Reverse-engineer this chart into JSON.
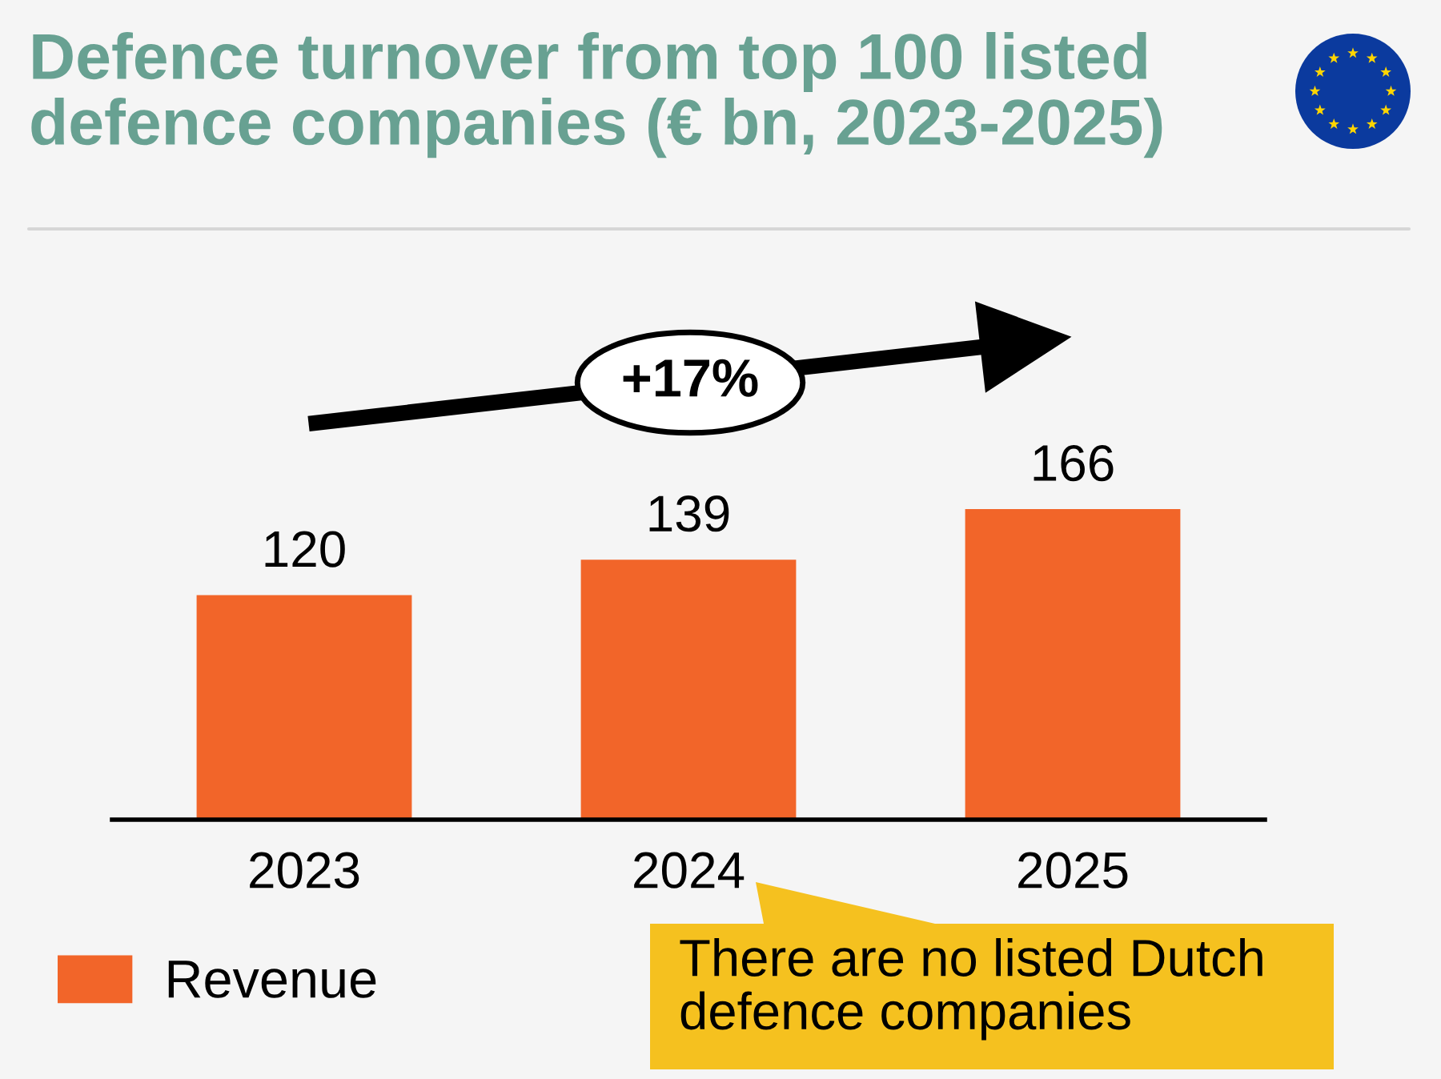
{
  "chart_data": {
    "type": "bar",
    "title": "Defence turnover from top 100 listed defence companies (€ bn, 2023-2025)",
    "categories": [
      "2023",
      "2024",
      "2025"
    ],
    "series": [
      {
        "name": "Revenue",
        "color": "#f26529",
        "values": [
          120,
          139,
          166
        ]
      }
    ],
    "data_labels": true,
    "legend": "bottom left",
    "tick_labels": "x",
    "annotations": [
      "+17%",
      "There are no listed Dutch defence companies"
    ]
  }
}
